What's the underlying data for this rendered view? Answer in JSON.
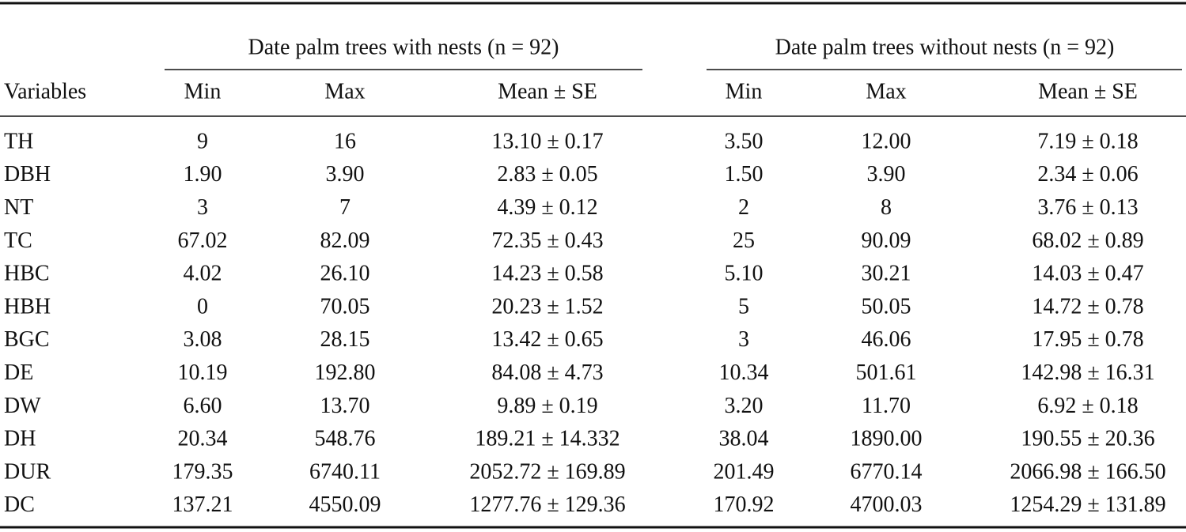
{
  "table": {
    "group_headers": [
      "Date palm trees with nests (n = 92)",
      "Date palm trees without nests (n = 92)"
    ],
    "columns": [
      "Variables",
      "Min",
      "Max",
      "Mean ± SE",
      "Min",
      "Max",
      "Mean ± SE"
    ],
    "rows": [
      [
        "TH",
        "9",
        "16",
        "13.10 ± 0.17",
        "3.50",
        "12.00",
        "7.19 ± 0.18"
      ],
      [
        "DBH",
        "1.90",
        "3.90",
        "2.83 ± 0.05",
        "1.50",
        "3.90",
        "2.34 ± 0.06"
      ],
      [
        "NT",
        "3",
        "7",
        "4.39 ± 0.12",
        "2",
        "8",
        "3.76 ± 0.13"
      ],
      [
        "TC",
        "67.02",
        "82.09",
        "72.35 ± 0.43",
        "25",
        "90.09",
        "68.02 ± 0.89"
      ],
      [
        "HBC",
        "4.02",
        "26.10",
        "14.23 ± 0.58",
        "5.10",
        "30.21",
        "14.03 ± 0.47"
      ],
      [
        "HBH",
        "0",
        "70.05",
        "20.23 ± 1.52",
        "5",
        "50.05",
        "14.72 ± 0.78"
      ],
      [
        "BGC",
        "3.08",
        "28.15",
        "13.42 ± 0.65",
        "3",
        "46.06",
        "17.95 ± 0.78"
      ],
      [
        "DE",
        "10.19",
        "192.80",
        "84.08 ± 4.73",
        "10.34",
        "501.61",
        "142.98 ± 16.31"
      ],
      [
        "DW",
        "6.60",
        "13.70",
        "9.89 ± 0.19",
        "3.20",
        "11.70",
        "6.92 ± 0.18"
      ],
      [
        "DH",
        "20.34",
        "548.76",
        "189.21 ± 14.332",
        "38.04",
        "1890.00",
        "190.55 ± 20.36"
      ],
      [
        "DUR",
        "179.35",
        "6740.11",
        "2052.72 ± 169.89",
        "201.49",
        "6770.14",
        "2066.98 ± 166.50"
      ],
      [
        "DC",
        "137.21",
        "4550.09",
        "1277.76 ± 129.36",
        "170.92",
        "4700.03",
        "1254.29 ± 131.89"
      ]
    ]
  }
}
